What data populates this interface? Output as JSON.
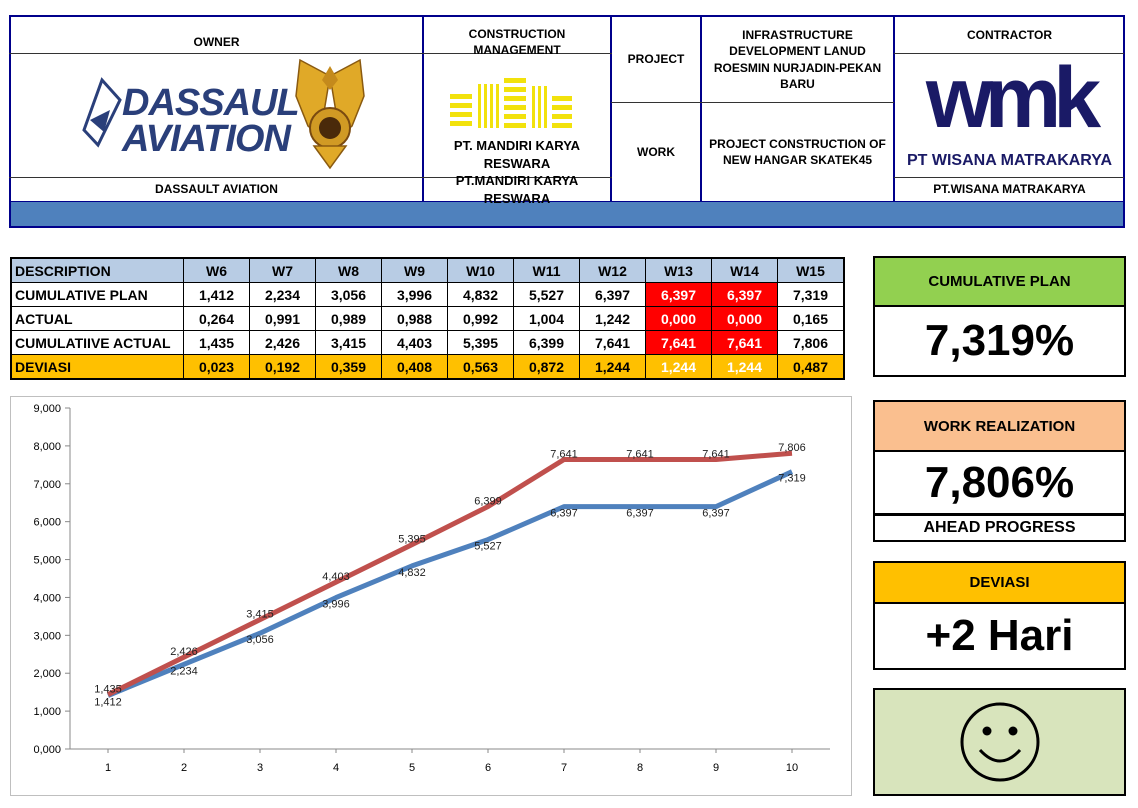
{
  "header": {
    "owner_label": "OWNER",
    "owner_logo_text_1": "DASSAULT",
    "owner_logo_text_2": "AVIATION",
    "owner_name": "DASSAULT AVIATION",
    "cm_label": "CONSTRUCTION MANAGEMENT",
    "cm_logo_text": "PT. MANDIRI KARYA RESWARA",
    "cm_name": "PT.MANDIRI KARYA RESWARA",
    "project_label": "PROJECT",
    "project_value": "INFRASTRUCTURE DEVELOPMENT LANUD ROESMIN NURJADIN-PEKAN BARU",
    "work_label": "WORK",
    "work_value": "PROJECT CONSTRUCTION OF NEW HANGAR SKATEK45",
    "contractor_label": "CONTRACTOR",
    "contractor_logo_text": "wmk",
    "contractor_logo_name": "PT WISANA MATRAKARYA",
    "contractor_name": "PT.WISANA MATRAKARYA",
    "colors": {
      "band": "#4f81bd",
      "border": "#00008b",
      "logo_navy": "#1a1a66"
    }
  },
  "table": {
    "columns": [
      "DESCRIPTION",
      "W6",
      "W7",
      "W8",
      "W9",
      "W10",
      "W11",
      "W12",
      "W13",
      "W14",
      "W15"
    ],
    "rows": [
      {
        "label": "CUMULATIVE PLAN",
        "values": [
          "1,412",
          "2,234",
          "3,056",
          "3,996",
          "4,832",
          "5,527",
          "6,397",
          "6,397",
          "6,397",
          "7,319"
        ]
      },
      {
        "label": "ACTUAL",
        "values": [
          "0,264",
          "0,991",
          "0,989",
          "0,988",
          "0,992",
          "1,004",
          "1,242",
          "0,000",
          "0,000",
          "0,165"
        ]
      },
      {
        "label": "CUMULATIIVE ACTUAL",
        "values": [
          "1,435",
          "2,426",
          "3,415",
          "4,403",
          "5,395",
          "6,399",
          "7,641",
          "7,641",
          "7,641",
          "7,806"
        ]
      },
      {
        "label": "DEVIASI",
        "values": [
          "0,023",
          "0,192",
          "0,359",
          "0,408",
          "0,563",
          "0,872",
          "1,244",
          "1,244",
          "1,244",
          "0,487"
        ]
      }
    ],
    "highlight_columns": [
      7,
      8
    ],
    "colors": {
      "header": "#b8cce4",
      "deviasi": "#ffc000",
      "highlight": "#ff0000"
    }
  },
  "panels": {
    "plan_title": "CUMULATIVE PLAN",
    "plan_value": "7,319%",
    "real_title": "WORK REALIZATION",
    "real_value": "7,806%",
    "real_note": "AHEAD PROGRESS",
    "dev_title": "DEVIASI",
    "dev_value": "+2 Hari",
    "status_icon": "smiley-face-icon",
    "colors": {
      "plan": "#92d050",
      "real": "#fabf8f",
      "dev": "#ffc000",
      "status": "#d8e4bc"
    }
  },
  "chart_data": {
    "type": "line",
    "x": [
      1,
      2,
      3,
      4,
      5,
      6,
      7,
      8,
      9,
      10
    ],
    "ylim": [
      0,
      9
    ],
    "yticks": [
      "0,000",
      "1,000",
      "2,000",
      "3,000",
      "4,000",
      "5,000",
      "6,000",
      "7,000",
      "8,000",
      "9,000"
    ],
    "xticks": [
      "1",
      "2",
      "3",
      "4",
      "5",
      "6",
      "7",
      "8",
      "9",
      "10"
    ],
    "grid": false,
    "series": [
      {
        "values": [
          1.412,
          2.234,
          3.056,
          3.996,
          4.832,
          5.527,
          6.397,
          6.397,
          6.397,
          7.319
        ],
        "labels": [
          "1,412",
          "2,234",
          "3,056",
          "3,996",
          "4,832",
          "5,527",
          "6,397",
          "6,397",
          "6,397",
          "7,319"
        ],
        "color": "#4f81bd"
      },
      {
        "values": [
          1.435,
          2.426,
          3.415,
          4.403,
          5.395,
          6.399,
          7.641,
          7.641,
          7.641,
          7.806
        ],
        "labels": [
          "1,435",
          "2,426",
          "3,415",
          "4,403",
          "5,395",
          "6,399",
          "7,641",
          "7,641",
          "7,641",
          "7,806"
        ],
        "color": "#c0504d"
      }
    ]
  }
}
